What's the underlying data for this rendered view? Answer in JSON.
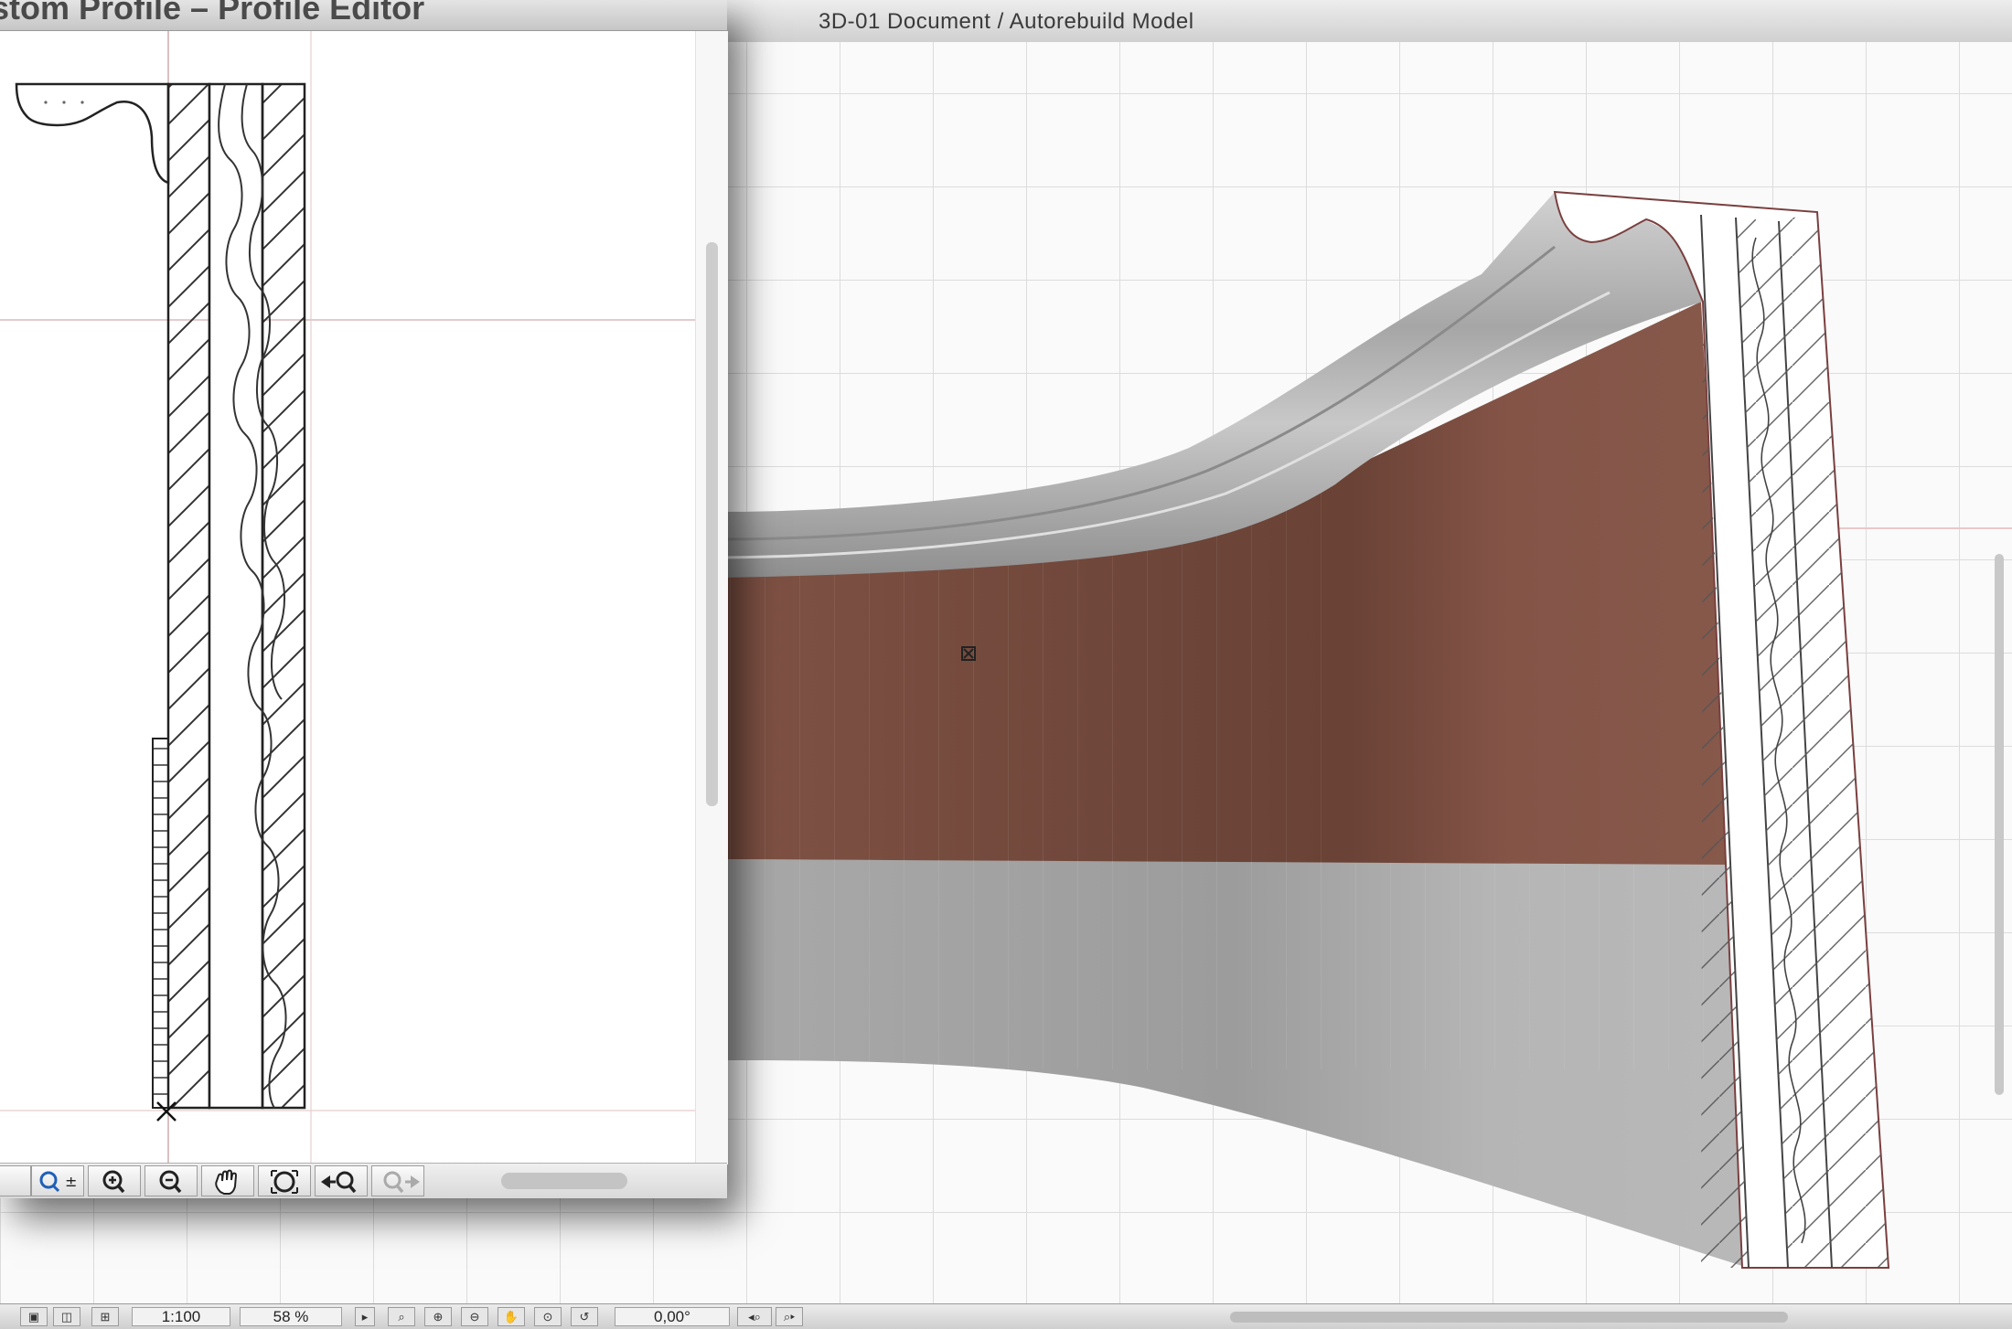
{
  "profile_editor": {
    "title": "stom Profile – Profile Editor",
    "toolbar": [
      {
        "icon": "zoom-menu-icon"
      },
      {
        "icon": "zoom-in-icon"
      },
      {
        "icon": "zoom-out-icon"
      },
      {
        "icon": "pan-hand-icon"
      },
      {
        "icon": "fit-in-window-icon"
      },
      {
        "icon": "previous-zoom-icon"
      },
      {
        "icon": "next-zoom-icon"
      }
    ]
  },
  "document_3d": {
    "title": "3D-01 Document / Autorebuild Model"
  },
  "statusbar": {
    "scale": "1:100",
    "zoom": "58 %",
    "angle": "0,00°"
  },
  "colors": {
    "wall_brown": "#835447",
    "wall_gray": "#b3b3b3",
    "molding_gray": "#a9a9a9",
    "grid": "#d9d9d9",
    "guide_line": "#d8b8b8"
  }
}
